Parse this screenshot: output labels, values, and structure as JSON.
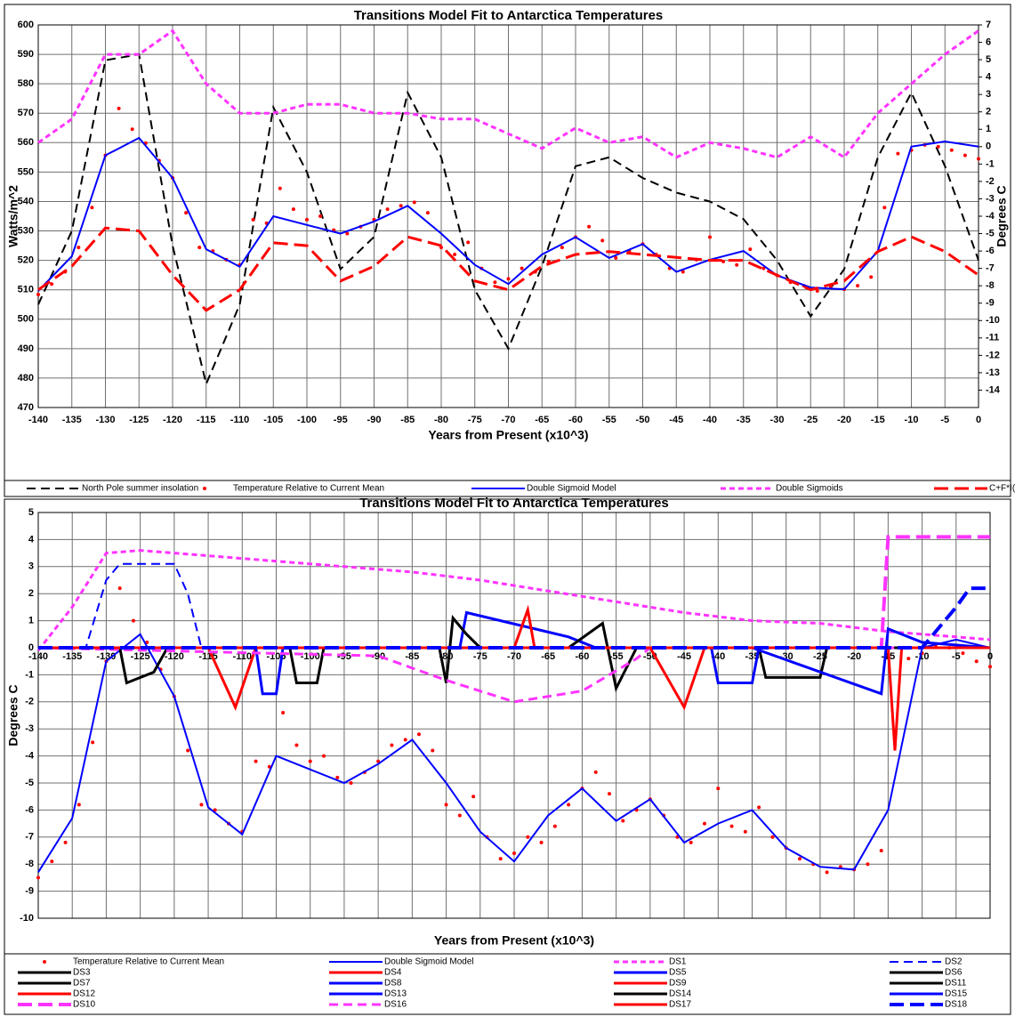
{
  "chart_data": [
    {
      "type": "line",
      "title": "Transitions Model Fit to Antarctica Temperatures",
      "x_label": "Years from Present (x10^3)",
      "y_label": "Watts/m^2",
      "y2_label": "Degrees C",
      "x": [
        -140,
        -135,
        -130,
        -125,
        -120,
        -115,
        -110,
        -105,
        -100,
        -95,
        -90,
        -85,
        -80,
        -75,
        -70,
        -65,
        -60,
        -55,
        -50,
        -45,
        -40,
        -35,
        -30,
        -25,
        -20,
        -15,
        -10,
        -5,
        0
      ],
      "xlim": [
        -140,
        0
      ],
      "xticks": [
        -140,
        -135,
        -130,
        -125,
        -120,
        -115,
        -110,
        -105,
        -100,
        -95,
        -90,
        -85,
        -80,
        -75,
        -70,
        -65,
        -60,
        -55,
        -50,
        -45,
        -40,
        -35,
        -30,
        -25,
        -20,
        -15,
        -10,
        -5,
        0
      ],
      "ylim": [
        470,
        600
      ],
      "yticks": [
        470,
        480,
        490,
        500,
        510,
        520,
        530,
        540,
        550,
        560,
        570,
        580,
        590,
        600
      ],
      "y2lim": [
        -15,
        7
      ],
      "y2ticks": [
        -14,
        -13,
        -12,
        -11,
        -10,
        -9,
        -8,
        -7,
        -6,
        -5,
        -4,
        -3,
        -2,
        -1,
        0,
        1,
        2,
        3,
        4,
        5,
        6,
        7
      ],
      "grid": true,
      "legend_columns": 5,
      "series": [
        {
          "name": "North Pole summer insolation",
          "color": "#000000",
          "line_style": "dashed",
          "line_width": 2,
          "values": [
            505,
            530,
            588,
            590,
            525,
            478,
            505,
            572,
            550,
            517,
            528,
            577,
            555,
            510,
            490,
            518,
            552,
            555,
            548,
            543,
            540,
            534,
            520,
            501,
            517,
            555,
            577,
            552,
            520
          ]
        },
        {
          "name": "Temperature Relative to Current Mean",
          "color": "#ff0000",
          "line_style": "dots",
          "axis": "y2",
          "x": [
            -140,
            -138,
            -136,
            -134,
            -132,
            -130,
            -128,
            -126,
            -124,
            -122,
            -120,
            -118,
            -116,
            -114,
            -112,
            -110,
            -108,
            -106,
            -104,
            -102,
            -100,
            -98,
            -96,
            -94,
            -92,
            -90,
            -88,
            -86,
            -84,
            -82,
            -80,
            -78,
            -76,
            -74,
            -72,
            -70,
            -68,
            -66,
            -64,
            -62,
            -60,
            -58,
            -56,
            -54,
            -52,
            -50,
            -48,
            -46,
            -44,
            -42,
            -40,
            -38,
            -36,
            -34,
            -32,
            -30,
            -28,
            -26,
            -24,
            -22,
            -20,
            -18,
            -16,
            -14,
            -12,
            -10,
            -8,
            -6,
            -4,
            -2,
            0
          ],
          "values": [
            -8.5,
            -7.9,
            -7.2,
            -5.8,
            -3.5,
            -0.5,
            2.2,
            1.0,
            0.2,
            -0.8,
            -1.8,
            -3.8,
            -5.8,
            -6.0,
            -6.5,
            -6.8,
            -4.2,
            -4.4,
            -2.4,
            -3.6,
            -4.2,
            -4.0,
            -4.8,
            -5.0,
            -4.6,
            -4.2,
            -3.6,
            -3.4,
            -3.2,
            -3.8,
            -5.8,
            -6.2,
            -5.5,
            -7.0,
            -7.8,
            -7.6,
            -7.0,
            -7.2,
            -6.6,
            -5.8,
            -5.2,
            -4.6,
            -5.4,
            -6.4,
            -6.0,
            -5.6,
            -6.2,
            -7.0,
            -7.2,
            -6.5,
            -5.2,
            -6.6,
            -6.8,
            -5.9,
            -7.0,
            -7.4,
            -7.8,
            -8.0,
            -8.3,
            -8.1,
            -8.2,
            -8.0,
            -7.5,
            -3.5,
            -0.4,
            -0.2,
            0.1,
            0.0,
            -0.2,
            -0.5,
            -0.7
          ]
        },
        {
          "name": "Double Sigmoid Model",
          "color": "#0000ff",
          "line_style": "solid",
          "line_width": 2,
          "axis": "y2",
          "values": [
            -8.3,
            -6.3,
            -0.5,
            0.5,
            -1.8,
            -5.9,
            -6.9,
            -4.0,
            -4.5,
            -5.0,
            -4.3,
            -3.4,
            -5.0,
            -6.8,
            -7.9,
            -6.2,
            -5.2,
            -6.4,
            -5.6,
            -7.2,
            -6.5,
            -6.0,
            -7.4,
            -8.1,
            -8.2,
            -6.0,
            0.0,
            0.3,
            0.0
          ]
        },
        {
          "name": "Double Sigmoids",
          "color": "#ff33ff",
          "line_style": "short-dash",
          "line_width": 3,
          "values": [
            560,
            568,
            590,
            590,
            598,
            580,
            570,
            570,
            573,
            573,
            570,
            570,
            568,
            568,
            563,
            558,
            565,
            560,
            562,
            555,
            560,
            558,
            555,
            562,
            555,
            570,
            580,
            590,
            598
          ]
        },
        {
          "name": "C+F*I(t)",
          "color": "#ff0000",
          "line_style": "long-dash",
          "line_width": 3,
          "values": [
            510,
            518,
            531,
            530,
            515,
            503,
            510,
            526,
            525,
            513,
            518,
            528,
            525,
            513,
            510,
            518,
            522,
            523,
            522,
            521,
            520,
            520,
            515,
            510,
            513,
            523,
            528,
            523,
            515
          ]
        }
      ]
    },
    {
      "type": "line",
      "title": "Transitions Model Fit to Antarctica Temperatures",
      "x_label": "Years from Present (x10^3)",
      "y_label": "Degrees C",
      "x": [
        -140,
        -135,
        -130,
        -125,
        -120,
        -115,
        -110,
        -105,
        -100,
        -95,
        -90,
        -85,
        -80,
        -75,
        -70,
        -65,
        -60,
        -55,
        -50,
        -45,
        -40,
        -35,
        -30,
        -25,
        -20,
        -15,
        -10,
        -5,
        0
      ],
      "xlim": [
        -140,
        0
      ],
      "xticks": [
        -140,
        -135,
        -130,
        -125,
        -120,
        -115,
        -110,
        -105,
        -100,
        -95,
        -90,
        -85,
        -80,
        -75,
        -70,
        -65,
        -60,
        -55,
        -50,
        -45,
        -40,
        -35,
        -30,
        -25,
        -20,
        -15,
        -10,
        -5,
        0
      ],
      "ylim": [
        -10,
        5
      ],
      "yticks": [
        -10,
        -9,
        -8,
        -7,
        -6,
        -5,
        -4,
        -3,
        -2,
        -1,
        0,
        1,
        2,
        3,
        4,
        5
      ],
      "grid": true,
      "x_labels_at_zero": true,
      "legend_columns": 4,
      "series": [
        {
          "name": "Temperature Relative to Current Mean",
          "color": "#ff0000",
          "line_style": "dots",
          "x": [
            -140,
            -138,
            -136,
            -134,
            -132,
            -130,
            -128,
            -126,
            -124,
            -122,
            -120,
            -118,
            -116,
            -114,
            -112,
            -110,
            -108,
            -106,
            -104,
            -102,
            -100,
            -98,
            -96,
            -94,
            -92,
            -90,
            -88,
            -86,
            -84,
            -82,
            -80,
            -78,
            -76,
            -74,
            -72,
            -70,
            -68,
            -66,
            -64,
            -62,
            -60,
            -58,
            -56,
            -54,
            -52,
            -50,
            -48,
            -46,
            -44,
            -42,
            -40,
            -38,
            -36,
            -34,
            -32,
            -30,
            -28,
            -26,
            -24,
            -22,
            -20,
            -18,
            -16,
            -14,
            -12,
            -10,
            -8,
            -6,
            -4,
            -2,
            0
          ],
          "values": [
            -8.5,
            -7.9,
            -7.2,
            -5.8,
            -3.5,
            -0.5,
            2.2,
            1.0,
            0.2,
            -0.8,
            -1.8,
            -3.8,
            -5.8,
            -6.0,
            -6.5,
            -6.8,
            -4.2,
            -4.4,
            -2.4,
            -3.6,
            -4.2,
            -4.0,
            -4.8,
            -5.0,
            -4.6,
            -4.2,
            -3.6,
            -3.4,
            -3.2,
            -3.8,
            -5.8,
            -6.2,
            -5.5,
            -7.0,
            -7.8,
            -7.6,
            -7.0,
            -7.2,
            -6.6,
            -5.8,
            -5.2,
            -4.6,
            -5.4,
            -6.4,
            -6.0,
            -5.6,
            -6.2,
            -7.0,
            -7.2,
            -6.5,
            -5.2,
            -6.6,
            -6.8,
            -5.9,
            -7.0,
            -7.4,
            -7.8,
            -8.0,
            -8.3,
            -8.1,
            -8.2,
            -8.0,
            -7.5,
            -3.5,
            -0.4,
            -0.2,
            0.1,
            0.0,
            -0.2,
            -0.5,
            -0.7
          ]
        },
        {
          "name": "Double Sigmoid Model",
          "color": "#0000ff",
          "line_style": "solid",
          "line_width": 2,
          "values": [
            -8.3,
            -6.3,
            -0.5,
            0.5,
            -1.8,
            -5.9,
            -6.9,
            -4.0,
            -4.5,
            -5.0,
            -4.3,
            -3.4,
            -5.0,
            -6.8,
            -7.9,
            -6.2,
            -5.2,
            -6.4,
            -5.6,
            -7.2,
            -6.5,
            -6.0,
            -7.4,
            -8.1,
            -8.2,
            -6.0,
            0.0,
            0.3,
            0.0
          ]
        },
        {
          "name": "DS1",
          "color": "#ff33ff",
          "line_style": "short-dash",
          "line_width": 3,
          "x": [
            -140,
            -135,
            -130,
            -125,
            -115,
            -105,
            -95,
            -85,
            -75,
            -65,
            -55,
            -45,
            -35,
            -25,
            -15,
            -10,
            -5,
            0
          ],
          "values": [
            -0.1,
            1.5,
            3.5,
            3.6,
            3.4,
            3.2,
            3.0,
            2.8,
            2.5,
            2.1,
            1.7,
            1.3,
            1.0,
            0.9,
            0.6,
            0.5,
            0.4,
            0.3
          ]
        },
        {
          "name": "DS2",
          "color": "#0000ff",
          "line_style": "dashed",
          "line_width": 2,
          "x": [
            -140,
            -133,
            -130,
            -128,
            -120,
            -118,
            -116,
            0
          ],
          "values": [
            0,
            0,
            2.5,
            3.1,
            3.1,
            2.0,
            0,
            0
          ]
        },
        {
          "name": "DS3",
          "color": "#000000",
          "line_style": "solid",
          "line_width": 3,
          "x": [
            -140,
            -128,
            -127,
            -123,
            -121,
            0
          ],
          "values": [
            0,
            0,
            -1.3,
            -0.9,
            0,
            0
          ]
        },
        {
          "name": "DS4",
          "color": "#ff0000",
          "line_style": "solid",
          "line_width": 3,
          "x": [
            -140,
            -115,
            -111,
            -108,
            0
          ],
          "values": [
            0,
            0,
            -2.2,
            0,
            0
          ]
        },
        {
          "name": "DS5",
          "color": "#0000ff",
          "line_style": "solid",
          "line_width": 3,
          "x": [
            -140,
            -78,
            -77,
            -62,
            -58,
            0
          ],
          "values": [
            0,
            0,
            1.3,
            0.4,
            0,
            0
          ]
        },
        {
          "name": "DS6",
          "color": "#000000",
          "line_style": "solid",
          "line_width": 3,
          "x": [
            -140,
            -34,
            -33,
            -25,
            -24,
            0
          ],
          "values": [
            0,
            0,
            -1.1,
            -1.1,
            0,
            0
          ]
        },
        {
          "name": "DS7",
          "color": "#000000",
          "line_style": "solid",
          "line_width": 3,
          "x": [
            -140,
            -81,
            -80,
            -79,
            -77,
            -75,
            0
          ],
          "values": [
            0,
            0,
            -1.3,
            1.1,
            0.5,
            0,
            0
          ]
        },
        {
          "name": "DS8",
          "color": "#0000ff",
          "line_style": "solid",
          "line_width": 3,
          "x": [
            -140,
            -108,
            -107,
            -105,
            -104,
            0
          ],
          "values": [
            0,
            0,
            -1.7,
            -1.7,
            0,
            0
          ]
        },
        {
          "name": "DS9",
          "color": "#ff0000",
          "line_style": "solid",
          "line_width": 3,
          "x": [
            -140,
            -70,
            -68,
            -67,
            0
          ],
          "values": [
            0,
            0,
            1.4,
            0,
            0
          ]
        },
        {
          "name": "DS11",
          "color": "#000000",
          "line_style": "solid",
          "line_width": 3,
          "x": [
            -140,
            -103,
            -102,
            -99,
            -98,
            0
          ],
          "values": [
            0,
            0,
            -1.3,
            -1.3,
            0,
            0
          ]
        },
        {
          "name": "DS12",
          "color": "#ff0000",
          "line_style": "solid",
          "line_width": 3,
          "x": [
            -140,
            -50,
            -45,
            -42,
            0
          ],
          "values": [
            0,
            0,
            -2.2,
            0,
            0
          ]
        },
        {
          "name": "DS13",
          "color": "#0000ff",
          "line_style": "solid",
          "line_width": 3,
          "x": [
            -140,
            -41,
            -40,
            -35,
            -34,
            0
          ],
          "values": [
            0,
            0,
            -1.3,
            -1.3,
            0,
            0
          ]
        },
        {
          "name": "DS14",
          "color": "#000000",
          "line_style": "solid",
          "line_width": 3,
          "x": [
            -140,
            -62,
            -57,
            -55,
            -52,
            0
          ],
          "values": [
            0,
            0,
            0.9,
            -1.5,
            0,
            0
          ]
        },
        {
          "name": "DS15",
          "color": "#0000ff",
          "line_style": "solid",
          "line_width": 3,
          "x": [
            -140,
            -35,
            -16,
            -15,
            -10,
            0
          ],
          "values": [
            0,
            0,
            -1.7,
            0.7,
            0.2,
            0
          ]
        },
        {
          "name": "DS10",
          "color": "#ff33ff",
          "line_style": "long-dash",
          "line_width": 4,
          "x": [
            -140,
            -16,
            -15,
            0
          ],
          "values": [
            0,
            0,
            4.1,
            4.1
          ]
        },
        {
          "name": "DS16",
          "color": "#ff33ff",
          "line_style": "dashed",
          "line_width": 3,
          "x": [
            -140,
            -90,
            -80,
            -70,
            -60,
            -52,
            -50,
            0
          ],
          "values": [
            0,
            -0.3,
            -1.2,
            -2.0,
            -1.6,
            -0.4,
            0,
            0
          ]
        },
        {
          "name": "DS17",
          "color": "#ff0000",
          "line_style": "solid",
          "line_width": 3,
          "x": [
            -140,
            -15,
            -14,
            -13,
            0
          ],
          "values": [
            0,
            0,
            -3.8,
            0,
            0
          ]
        },
        {
          "name": "DS18",
          "color": "#0000ff",
          "line_style": "long-dash",
          "line_width": 4,
          "x": [
            -140,
            -10,
            -5,
            -3,
            0
          ],
          "values": [
            0,
            0,
            1.5,
            2.2,
            2.2
          ]
        }
      ]
    }
  ]
}
